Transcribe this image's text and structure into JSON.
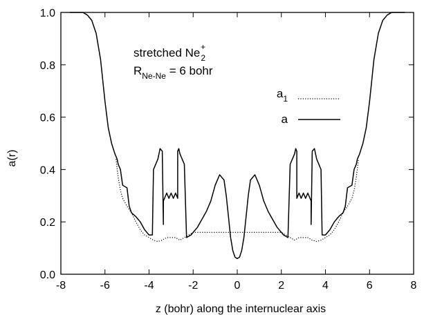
{
  "chart_data": {
    "type": "line",
    "title": "",
    "xlabel": "z (bohr) along the internuclear axis",
    "ylabel": "a(r)",
    "xlim": [
      -8,
      8
    ],
    "ylim": [
      0.0,
      1.0
    ],
    "x_ticks": [
      "-8",
      "-6",
      "-4",
      "-2",
      "0",
      "2",
      "4",
      "6",
      "8"
    ],
    "y_ticks": [
      "0.0",
      "0.2",
      "0.4",
      "0.6",
      "0.8",
      "1.0"
    ],
    "grid": false,
    "legend_position": "upper-right",
    "annotations": {
      "line1_main": "stretched Ne",
      "line1_sub": "2",
      "line1_sup": "+",
      "line2_main": "R",
      "line2_sub": "Ne-Ne",
      "line2_rest": " = 6 bohr"
    },
    "series": [
      {
        "name": "a",
        "legend_main": "a",
        "legend_sub": "",
        "style": "solid",
        "x": [
          -7.6,
          -7.0,
          -6.8,
          -6.6,
          -6.4,
          -6.2,
          -6.0,
          -5.85,
          -5.7,
          -5.55,
          -5.45,
          -5.4,
          -5.3,
          -5.2,
          -5.0,
          -4.9,
          -4.8,
          -4.6,
          -4.4,
          -4.2,
          -4.0,
          -3.85,
          -3.8,
          -3.6,
          -3.5,
          -3.4,
          -3.35,
          -3.35,
          -3.2,
          -3.1,
          -3.0,
          -2.9,
          -2.8,
          -2.7,
          -2.7,
          -2.65,
          -2.6,
          -2.4,
          -2.3,
          -2.1,
          -2.0,
          -1.8,
          -1.6,
          -1.4,
          -1.2,
          -1.0,
          -0.8,
          -0.6,
          -0.5,
          -0.4,
          -0.3,
          -0.2,
          -0.1,
          0.0,
          0.1,
          0.2,
          0.3,
          0.4,
          0.5,
          0.6,
          0.8,
          1.0,
          1.2,
          1.4,
          1.6,
          1.8,
          2.0,
          2.1,
          2.3,
          2.4,
          2.6,
          2.65,
          2.7,
          2.7,
          2.8,
          2.9,
          3.0,
          3.1,
          3.2,
          3.35,
          3.35,
          3.4,
          3.5,
          3.6,
          3.8,
          3.85,
          4.0,
          4.2,
          4.4,
          4.6,
          4.8,
          4.9,
          5.0,
          5.2,
          5.3,
          5.4,
          5.45,
          5.55,
          5.7,
          5.85,
          6.0,
          6.2,
          6.4,
          6.6,
          6.8,
          7.0,
          7.6
        ],
        "y": [
          1.0,
          1.0,
          0.99,
          0.97,
          0.92,
          0.82,
          0.66,
          0.56,
          0.5,
          0.46,
          0.44,
          0.42,
          0.4,
          0.34,
          0.33,
          0.26,
          0.235,
          0.22,
          0.2,
          0.17,
          0.15,
          0.15,
          0.4,
          0.44,
          0.48,
          0.47,
          0.19,
          0.28,
          0.31,
          0.29,
          0.31,
          0.29,
          0.31,
          0.29,
          0.47,
          0.48,
          0.46,
          0.42,
          0.14,
          0.15,
          0.16,
          0.18,
          0.21,
          0.24,
          0.28,
          0.34,
          0.38,
          0.36,
          0.3,
          0.22,
          0.14,
          0.09,
          0.065,
          0.06,
          0.065,
          0.09,
          0.14,
          0.22,
          0.3,
          0.36,
          0.38,
          0.34,
          0.28,
          0.24,
          0.21,
          0.18,
          0.16,
          0.15,
          0.14,
          0.42,
          0.46,
          0.48,
          0.47,
          0.29,
          0.31,
          0.29,
          0.31,
          0.29,
          0.31,
          0.28,
          0.19,
          0.47,
          0.48,
          0.44,
          0.4,
          0.15,
          0.15,
          0.17,
          0.2,
          0.22,
          0.235,
          0.26,
          0.33,
          0.34,
          0.4,
          0.42,
          0.44,
          0.46,
          0.5,
          0.56,
          0.66,
          0.82,
          0.92,
          0.97,
          0.99,
          1.0,
          1.0
        ]
      },
      {
        "name": "a1",
        "legend_main": "a",
        "legend_sub": "1",
        "style": "dotted",
        "x": [
          -5.5,
          -5.4,
          -5.3,
          -5.2,
          -5.0,
          -4.8,
          -4.6,
          -4.4,
          -4.2,
          -4.0,
          -3.8,
          -3.6,
          -3.4,
          -3.2,
          -3.0,
          -2.8,
          -2.6,
          -2.4,
          -2.2,
          -2.0,
          2.0,
          2.2,
          2.4,
          2.6,
          2.8,
          3.0,
          3.2,
          3.4,
          3.6,
          3.8,
          4.0,
          4.2,
          4.4,
          4.6,
          4.8,
          5.0,
          5.2,
          5.3,
          5.4,
          5.5
        ],
        "y": [
          0.44,
          0.37,
          0.32,
          0.29,
          0.26,
          0.235,
          0.2,
          0.17,
          0.15,
          0.14,
          0.13,
          0.125,
          0.13,
          0.14,
          0.14,
          0.14,
          0.13,
          0.14,
          0.15,
          0.16,
          0.16,
          0.15,
          0.14,
          0.13,
          0.14,
          0.14,
          0.14,
          0.13,
          0.125,
          0.13,
          0.14,
          0.15,
          0.17,
          0.2,
          0.235,
          0.26,
          0.29,
          0.32,
          0.37,
          0.44
        ]
      }
    ]
  }
}
